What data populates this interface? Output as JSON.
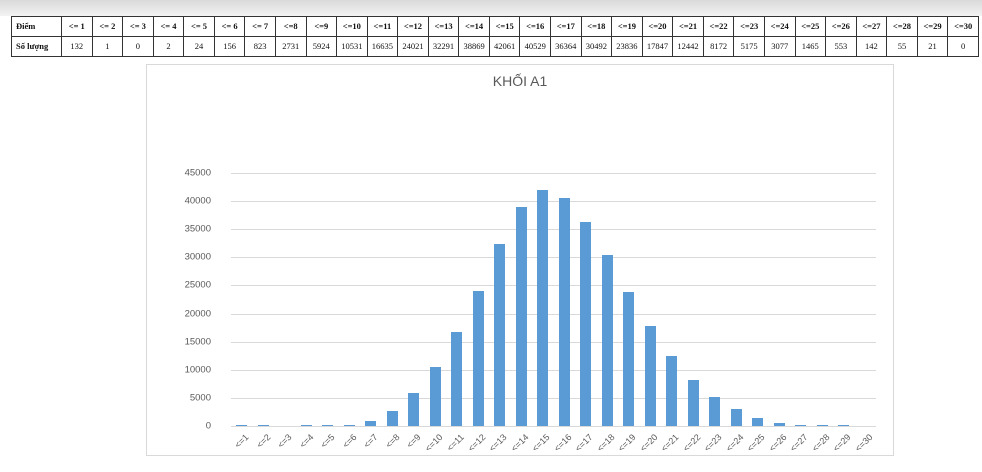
{
  "table": {
    "row_labels": [
      "Điểm",
      "Số lượng"
    ],
    "headers": [
      "<= 1",
      "<= 2",
      "<= 3",
      "<= 4",
      "<= 5",
      "<= 6",
      "<= 7",
      "<=8",
      "<=9",
      "<=10",
      "<=11",
      "<=12",
      "<=13",
      "<=14",
      "<=15",
      "<=16",
      "<=17",
      "<=18",
      "<=19",
      "<=20",
      "<=21",
      "<=22",
      "<=23",
      "<=24",
      "<=25",
      "<=26",
      "<=27",
      "<=28",
      "<=29",
      "<=30"
    ],
    "values": [
      "132",
      "1",
      "0",
      "2",
      "24",
      "156",
      "823",
      "2731",
      "5924",
      "10531",
      "16635",
      "24021",
      "32291",
      "38869",
      "42061",
      "40529",
      "36364",
      "30492",
      "23836",
      "17847",
      "12442",
      "8172",
      "5175",
      "3077",
      "1465",
      "553",
      "142",
      "55",
      "21",
      "0"
    ]
  },
  "chart_data": {
    "type": "bar",
    "title": "KHỐI A1",
    "xlabel": "",
    "ylabel": "",
    "ylim": [
      0,
      45000
    ],
    "yticks": [
      0,
      5000,
      10000,
      15000,
      20000,
      25000,
      30000,
      35000,
      40000,
      45000
    ],
    "grid": true,
    "legend": "none",
    "bar_color": "#5b9bd5",
    "categories": [
      "<=1",
      "<=2",
      "<=3",
      "<=4",
      "<=5",
      "<=6",
      "<=7",
      "<=8",
      "<=9",
      "<=10",
      "<=11",
      "<=12",
      "<=13",
      "<=14",
      "<=15",
      "<=16",
      "<=17",
      "<=18",
      "<=19",
      "<=20",
      "<=21",
      "<=22",
      "<=23",
      "<=24",
      "<=25",
      "<=26",
      "<=27",
      "<=28",
      "<=29",
      "<=30"
    ],
    "values": [
      132,
      1,
      0,
      2,
      24,
      156,
      823,
      2731,
      5924,
      10531,
      16635,
      24021,
      32291,
      38869,
      42061,
      40529,
      36364,
      30492,
      23836,
      17847,
      12442,
      8172,
      5175,
      3077,
      1465,
      553,
      142,
      55,
      21,
      0
    ]
  }
}
